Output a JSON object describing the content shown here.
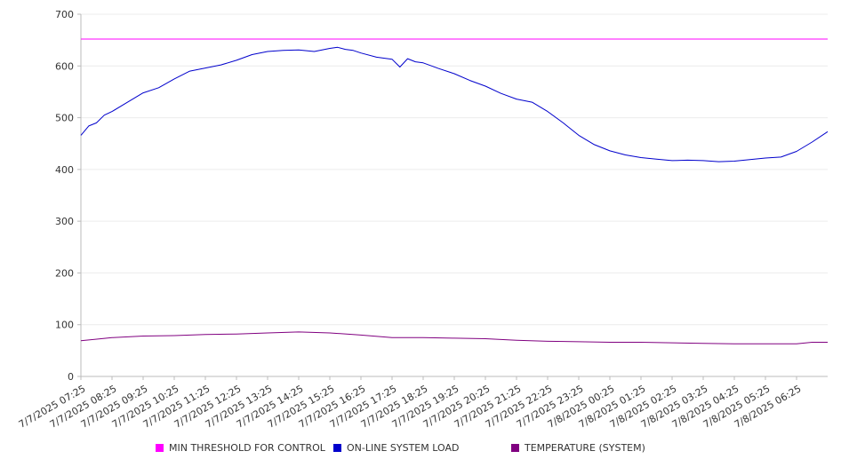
{
  "chart_data": {
    "type": "line",
    "ylim": [
      0,
      700
    ],
    "yticks": [
      0,
      100,
      200,
      300,
      400,
      500,
      600,
      700
    ],
    "x_tick_labels": [
      "7/7/2025 07:25",
      "7/7/2025 08:25",
      "7/7/2025 09:25",
      "7/7/2025 10:25",
      "7/7/2025 11:25",
      "7/7/2025 12:25",
      "7/7/2025 13:25",
      "7/7/2025 14:25",
      "7/7/2025 15:25",
      "7/7/2025 16:25",
      "7/7/2025 17:25",
      "7/7/2025 18:25",
      "7/7/2025 19:25",
      "7/7/2025 20:25",
      "7/7/2025 21:25",
      "7/7/2025 22:25",
      "7/7/2025 23:25",
      "7/8/2025 00:25",
      "7/8/2025 01:25",
      "7/8/2025 02:25",
      "7/8/2025 03:25",
      "7/8/2025 04:25",
      "7/8/2025 05:25",
      "7/8/2025 06:25"
    ],
    "x_range_hours": [
      0,
      24
    ],
    "grid": true,
    "legend_position": "bottom",
    "series": [
      {
        "name": "MIN THRESHOLD FOR CONTROL",
        "color": "#ff00ff",
        "x": [
          0,
          24
        ],
        "values": [
          652,
          652
        ]
      },
      {
        "name": "ON-LINE SYSTEM LOAD",
        "color": "#0000cc",
        "x": [
          0,
          0.25,
          0.5,
          0.75,
          1,
          1.5,
          2,
          2.5,
          3,
          3.5,
          4,
          4.5,
          5,
          5.5,
          6,
          6.5,
          7,
          7.5,
          8,
          8.25,
          8.5,
          8.75,
          9,
          9.5,
          10,
          10.25,
          10.5,
          10.75,
          11,
          11.5,
          12,
          12.5,
          13,
          13.5,
          14,
          14.5,
          15,
          15.5,
          16,
          16.5,
          17,
          17.5,
          18,
          18.5,
          19,
          19.5,
          20,
          20.5,
          21,
          21.5,
          22,
          22.5,
          23,
          23.5,
          24
        ],
        "values": [
          466,
          484,
          490,
          505,
          512,
          530,
          548,
          558,
          575,
          590,
          596,
          602,
          611,
          622,
          628,
          630,
          631,
          628,
          634,
          636,
          632,
          630,
          625,
          617,
          613,
          598,
          614,
          608,
          606,
          595,
          585,
          572,
          561,
          547,
          536,
          530,
          512,
          490,
          466,
          448,
          436,
          428,
          423,
          420,
          417,
          418,
          417,
          415,
          416,
          419,
          422,
          424,
          435,
          453,
          473
        ]
      },
      {
        "name": "TEMPERATURE (SYSTEM)",
        "color": "#800080",
        "x": [
          0,
          1,
          2,
          3,
          4,
          5,
          6,
          7,
          8,
          9,
          10,
          11,
          12,
          13,
          14,
          15,
          16,
          17,
          18,
          19,
          20,
          21,
          22,
          23,
          23.5,
          24
        ],
        "values": [
          69,
          75,
          78,
          79,
          81,
          82,
          84,
          86,
          84,
          80,
          75,
          75,
          74,
          73,
          70,
          68,
          67,
          66,
          66,
          65,
          64,
          63,
          63,
          63,
          66,
          66
        ]
      }
    ]
  }
}
